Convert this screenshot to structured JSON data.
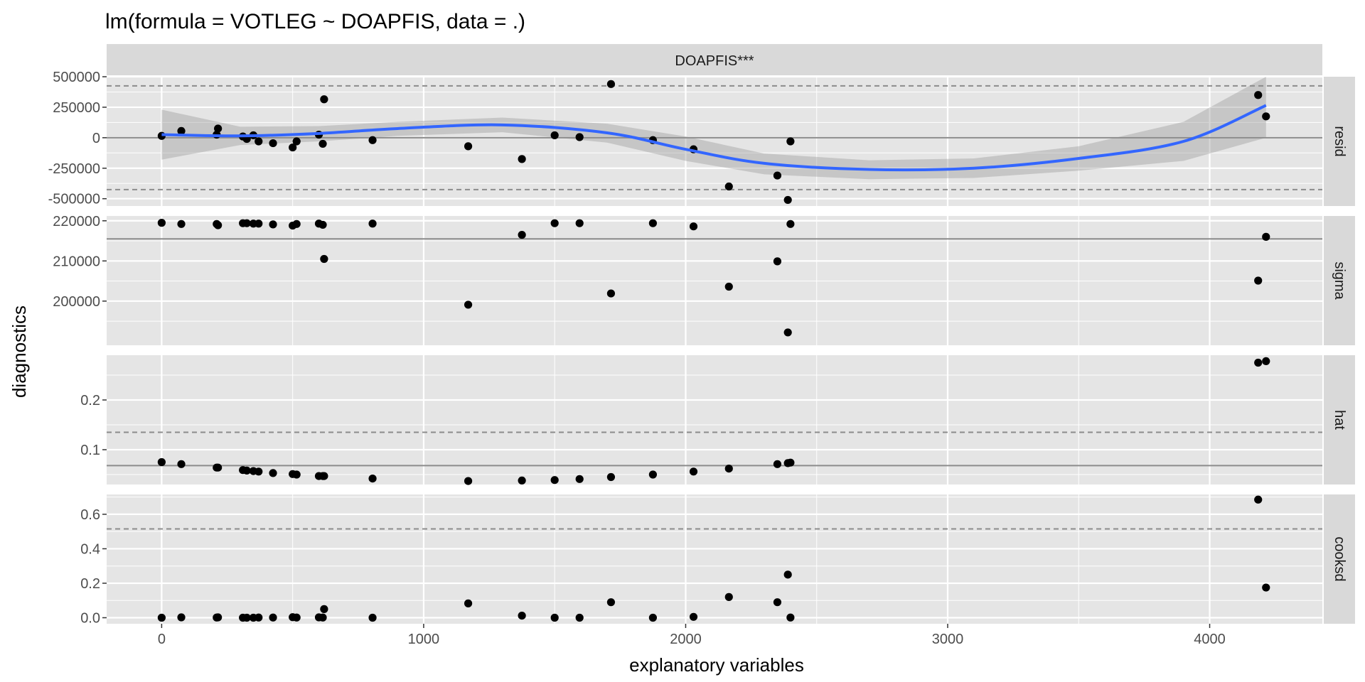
{
  "title": "lm(formula = VOTLEG ~ DOAPFIS, data = .)",
  "colors": {
    "panel_bg": "#e5e5e5",
    "grid": "#ffffff",
    "strip_bg": "#d9d9d9",
    "points": "#000000",
    "smooth": "#3366ff",
    "ribbon": "#999999",
    "ref_line": "#8c8c8c"
  },
  "chart_data": {
    "type": "scatter",
    "facet_column": "DOAPFIS***",
    "xlabel": "explanatory variables",
    "ylabel": "diagnostics",
    "x_ticks": [
      "0",
      "1000",
      "2000",
      "3000",
      "4000"
    ],
    "xlim": [
      -210,
      4430
    ],
    "x": [
      0,
      75,
      210,
      215,
      310,
      325,
      350,
      370,
      425,
      500,
      515,
      600,
      615,
      620,
      805,
      1170,
      1375,
      1500,
      1595,
      1715,
      1875,
      2030,
      2165,
      2350,
      2390,
      2400,
      4185,
      4215
    ],
    "panels": [
      {
        "name": "resid",
        "y_ticks": [
          "500000",
          "250000",
          "0",
          "-250000",
          "-500000"
        ],
        "ylim": [
          -560000,
          500000
        ],
        "y": [
          15000,
          55000,
          25000,
          75000,
          10000,
          -10000,
          20000,
          -30000,
          -45000,
          -80000,
          -30000,
          25000,
          -50000,
          315000,
          -20000,
          -70000,
          -175000,
          20000,
          5000,
          440000,
          -20000,
          -95000,
          -400000,
          -310000,
          -510000,
          -30000,
          350000,
          175000
        ],
        "smooth": [
          [
            0,
            25000
          ],
          [
            300,
            15000
          ],
          [
            600,
            35000
          ],
          [
            900,
            75000
          ],
          [
            1300,
            105000
          ],
          [
            1700,
            40000
          ],
          [
            2000,
            -95000
          ],
          [
            2300,
            -210000
          ],
          [
            2700,
            -260000
          ],
          [
            3100,
            -250000
          ],
          [
            3500,
            -170000
          ],
          [
            3900,
            -30000
          ],
          [
            4215,
            265000
          ]
        ],
        "ribbon": [
          [
            0,
            230000,
            -180000
          ],
          [
            300,
            90000,
            -60000
          ],
          [
            600,
            95000,
            -30000
          ],
          [
            900,
            130000,
            15000
          ],
          [
            1300,
            165000,
            45000
          ],
          [
            1700,
            115000,
            -40000
          ],
          [
            2000,
            10000,
            -190000
          ],
          [
            2300,
            -130000,
            -300000
          ],
          [
            2700,
            -185000,
            -340000
          ],
          [
            3100,
            -170000,
            -330000
          ],
          [
            3500,
            -70000,
            -270000
          ],
          [
            3900,
            130000,
            -190000
          ],
          [
            4215,
            500000,
            0
          ]
        ],
        "hlines": [
          {
            "value": 0,
            "style": "solid"
          },
          {
            "value": 425000,
            "style": "dashed"
          },
          {
            "value": -425000,
            "style": "dashed"
          }
        ]
      },
      {
        "name": "sigma",
        "y_ticks": [
          "220000",
          "210000",
          "200000"
        ],
        "ylim": [
          189000,
          221200
        ],
        "y": [
          219500,
          219200,
          219200,
          218900,
          219400,
          219400,
          219300,
          219300,
          219100,
          218800,
          219200,
          219300,
          219000,
          210500,
          219300,
          199100,
          216500,
          219400,
          219400,
          201900,
          219400,
          218600,
          203600,
          209900,
          192200,
          219200,
          205100,
          216000
        ],
        "hlines": [
          {
            "value": 215500,
            "style": "solid"
          }
        ]
      },
      {
        "name": "hat",
        "y_ticks": [
          "0.2",
          "0.1"
        ],
        "ylim": [
          0.03,
          0.29
        ],
        "y": [
          0.075,
          0.071,
          0.064,
          0.064,
          0.059,
          0.058,
          0.057,
          0.056,
          0.053,
          0.051,
          0.05,
          0.047,
          0.047,
          0.047,
          0.042,
          0.037,
          0.038,
          0.039,
          0.041,
          0.045,
          0.05,
          0.056,
          0.062,
          0.071,
          0.073,
          0.074,
          0.275,
          0.278
        ],
        "hlines": [
          {
            "value": 0.068,
            "style": "solid"
          },
          {
            "value": 0.135,
            "style": "dashed"
          }
        ]
      },
      {
        "name": "cooksd",
        "y_ticks": [
          "0.6",
          "0.4",
          "0.2",
          "0.0"
        ],
        "ylim": [
          -0.035,
          0.715
        ],
        "y": [
          0.0,
          0.002,
          0.001,
          0.002,
          0.0,
          0.0,
          0.0,
          0.001,
          0.001,
          0.003,
          0.001,
          0.002,
          0.001,
          0.05,
          0.0,
          0.083,
          0.012,
          0.0,
          0.0,
          0.09,
          0.0,
          0.005,
          0.12,
          0.09,
          0.25,
          0.001,
          0.685,
          0.175
        ],
        "hlines": [
          {
            "value": 0.515,
            "style": "dashed"
          }
        ]
      }
    ]
  }
}
